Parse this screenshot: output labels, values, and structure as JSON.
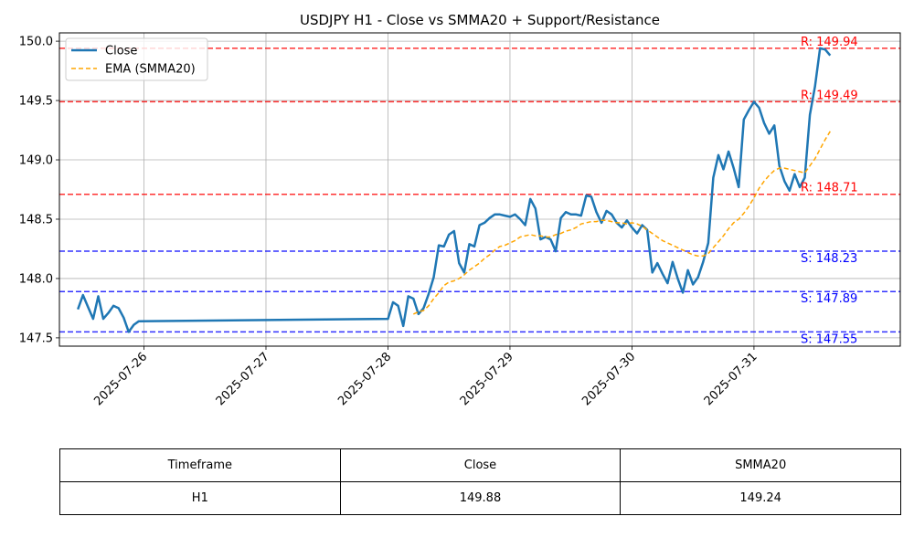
{
  "chart_data": {
    "type": "line",
    "title": "USDJPY H1 - Close vs SMMA20 + Support/Resistance",
    "xlabel": "",
    "ylabel": "",
    "x_tick_labels": [
      "2025-07-26",
      "2025-07-27",
      "2025-07-28",
      "2025-07-29",
      "2025-07-30",
      "2025-07-31"
    ],
    "y_tick_labels": [
      "147.5",
      "148.0",
      "148.5",
      "149.0",
      "149.5",
      "150.0"
    ],
    "ylim": [
      147.43,
      150.07
    ],
    "grid": true,
    "legend_position": "top-left",
    "series": [
      {
        "name": "Close",
        "color": "#1f77b4",
        "style": "solid",
        "points": [
          [
            "2025-07-25 11:00",
            147.74
          ],
          [
            "2025-07-25 12:00",
            147.86
          ],
          [
            "2025-07-25 13:00",
            147.76
          ],
          [
            "2025-07-25 14:00",
            147.66
          ],
          [
            "2025-07-25 15:00",
            147.85
          ],
          [
            "2025-07-25 16:00",
            147.66
          ],
          [
            "2025-07-25 17:00",
            147.71
          ],
          [
            "2025-07-25 18:00",
            147.77
          ],
          [
            "2025-07-25 19:00",
            147.75
          ],
          [
            "2025-07-25 20:00",
            147.67
          ],
          [
            "2025-07-25 21:00",
            147.55
          ],
          [
            "2025-07-25 22:00",
            147.61
          ],
          [
            "2025-07-25 23:00",
            147.64
          ],
          [
            "2025-07-28 00:00",
            147.66
          ],
          [
            "2025-07-28 01:00",
            147.8
          ],
          [
            "2025-07-28 02:00",
            147.77
          ],
          [
            "2025-07-28 03:00",
            147.6
          ],
          [
            "2025-07-28 04:00",
            147.85
          ],
          [
            "2025-07-28 05:00",
            147.83
          ],
          [
            "2025-07-28 06:00",
            147.7
          ],
          [
            "2025-07-28 07:00",
            147.75
          ],
          [
            "2025-07-28 08:00",
            147.87
          ],
          [
            "2025-07-28 09:00",
            148.01
          ],
          [
            "2025-07-28 10:00",
            148.28
          ],
          [
            "2025-07-28 11:00",
            148.27
          ],
          [
            "2025-07-28 12:00",
            148.37
          ],
          [
            "2025-07-28 13:00",
            148.4
          ],
          [
            "2025-07-28 14:00",
            148.13
          ],
          [
            "2025-07-28 15:00",
            148.05
          ],
          [
            "2025-07-28 16:00",
            148.29
          ],
          [
            "2025-07-28 17:00",
            148.27
          ],
          [
            "2025-07-28 18:00",
            148.45
          ],
          [
            "2025-07-28 19:00",
            148.47
          ],
          [
            "2025-07-28 20:00",
            148.51
          ],
          [
            "2025-07-28 21:00",
            148.54
          ],
          [
            "2025-07-28 22:00",
            148.54
          ],
          [
            "2025-07-28 23:00",
            148.53
          ],
          [
            "2025-07-29 00:00",
            148.52
          ],
          [
            "2025-07-29 01:00",
            148.54
          ],
          [
            "2025-07-29 02:00",
            148.5
          ],
          [
            "2025-07-29 03:00",
            148.45
          ],
          [
            "2025-07-29 04:00",
            148.67
          ],
          [
            "2025-07-29 05:00",
            148.59
          ],
          [
            "2025-07-29 06:00",
            148.33
          ],
          [
            "2025-07-29 07:00",
            148.35
          ],
          [
            "2025-07-29 08:00",
            148.33
          ],
          [
            "2025-07-29 09:00",
            148.23
          ],
          [
            "2025-07-29 10:00",
            148.51
          ],
          [
            "2025-07-29 11:00",
            148.56
          ],
          [
            "2025-07-29 12:00",
            148.54
          ],
          [
            "2025-07-29 13:00",
            148.54
          ],
          [
            "2025-07-29 14:00",
            148.53
          ],
          [
            "2025-07-29 15:00",
            148.7
          ],
          [
            "2025-07-29 16:00",
            148.69
          ],
          [
            "2025-07-29 17:00",
            148.56
          ],
          [
            "2025-07-29 18:00",
            148.47
          ],
          [
            "2025-07-29 19:00",
            148.57
          ],
          [
            "2025-07-29 20:00",
            148.54
          ],
          [
            "2025-07-29 21:00",
            148.47
          ],
          [
            "2025-07-29 22:00",
            148.43
          ],
          [
            "2025-07-29 23:00",
            148.49
          ],
          [
            "2025-07-30 00:00",
            148.43
          ],
          [
            "2025-07-30 01:00",
            148.38
          ],
          [
            "2025-07-30 02:00",
            148.45
          ],
          [
            "2025-07-30 03:00",
            148.41
          ],
          [
            "2025-07-30 04:00",
            148.05
          ],
          [
            "2025-07-30 05:00",
            148.13
          ],
          [
            "2025-07-30 06:00",
            148.04
          ],
          [
            "2025-07-30 07:00",
            147.96
          ],
          [
            "2025-07-30 08:00",
            148.14
          ],
          [
            "2025-07-30 09:00",
            148.0
          ],
          [
            "2025-07-30 10:00",
            147.88
          ],
          [
            "2025-07-30 11:00",
            148.07
          ],
          [
            "2025-07-30 12:00",
            147.95
          ],
          [
            "2025-07-30 13:00",
            148.01
          ],
          [
            "2025-07-30 14:00",
            148.14
          ],
          [
            "2025-07-30 15:00",
            148.3
          ],
          [
            "2025-07-30 16:00",
            148.85
          ],
          [
            "2025-07-30 17:00",
            149.04
          ],
          [
            "2025-07-30 18:00",
            148.92
          ],
          [
            "2025-07-30 19:00",
            149.07
          ],
          [
            "2025-07-30 20:00",
            148.93
          ],
          [
            "2025-07-30 21:00",
            148.77
          ],
          [
            "2025-07-30 22:00",
            149.34
          ],
          [
            "2025-07-30 23:00",
            149.42
          ],
          [
            "2025-07-31 00:00",
            149.49
          ],
          [
            "2025-07-31 01:00",
            149.44
          ],
          [
            "2025-07-31 02:00",
            149.31
          ],
          [
            "2025-07-31 03:00",
            149.22
          ],
          [
            "2025-07-31 04:00",
            149.29
          ],
          [
            "2025-07-31 05:00",
            148.95
          ],
          [
            "2025-07-31 06:00",
            148.82
          ],
          [
            "2025-07-31 07:00",
            148.74
          ],
          [
            "2025-07-31 08:00",
            148.88
          ],
          [
            "2025-07-31 09:00",
            148.77
          ],
          [
            "2025-07-31 10:00",
            148.85
          ],
          [
            "2025-07-31 11:00",
            149.38
          ],
          [
            "2025-07-31 12:00",
            149.62
          ],
          [
            "2025-07-31 13:00",
            149.94
          ],
          [
            "2025-07-31 14:00",
            149.93
          ],
          [
            "2025-07-31 15:00",
            149.88
          ]
        ]
      },
      {
        "name": "EMA (SMMA20)",
        "color": "#ffa500",
        "style": "dashed",
        "points": [
          [
            "2025-07-28 05:00",
            147.7
          ],
          [
            "2025-07-28 06:00",
            147.72
          ],
          [
            "2025-07-28 07:00",
            147.73
          ],
          [
            "2025-07-28 08:00",
            147.77
          ],
          [
            "2025-07-28 09:00",
            147.83
          ],
          [
            "2025-07-28 10:00",
            147.88
          ],
          [
            "2025-07-28 11:00",
            147.94
          ],
          [
            "2025-07-28 12:00",
            147.97
          ],
          [
            "2025-07-28 13:00",
            147.98
          ],
          [
            "2025-07-28 14:00",
            148.0
          ],
          [
            "2025-07-28 15:00",
            148.03
          ],
          [
            "2025-07-28 16:00",
            148.07
          ],
          [
            "2025-07-28 17:00",
            148.1
          ],
          [
            "2025-07-28 18:00",
            148.13
          ],
          [
            "2025-07-28 19:00",
            148.17
          ],
          [
            "2025-07-28 20:00",
            148.2
          ],
          [
            "2025-07-28 21:00",
            148.24
          ],
          [
            "2025-07-28 22:00",
            148.27
          ],
          [
            "2025-07-28 23:00",
            148.28
          ],
          [
            "2025-07-29 00:00",
            148.3
          ],
          [
            "2025-07-29 01:00",
            148.32
          ],
          [
            "2025-07-29 02:00",
            148.35
          ],
          [
            "2025-07-29 03:00",
            148.36
          ],
          [
            "2025-07-29 04:00",
            148.37
          ],
          [
            "2025-07-29 05:00",
            148.36
          ],
          [
            "2025-07-29 06:00",
            148.36
          ],
          [
            "2025-07-29 07:00",
            148.35
          ],
          [
            "2025-07-29 08:00",
            148.35
          ],
          [
            "2025-07-29 09:00",
            148.37
          ],
          [
            "2025-07-29 10:00",
            148.38
          ],
          [
            "2025-07-29 11:00",
            148.4
          ],
          [
            "2025-07-29 12:00",
            148.41
          ],
          [
            "2025-07-29 13:00",
            148.43
          ],
          [
            "2025-07-29 14:00",
            148.46
          ],
          [
            "2025-07-29 15:00",
            148.47
          ],
          [
            "2025-07-29 16:00",
            148.48
          ],
          [
            "2025-07-29 17:00",
            148.48
          ],
          [
            "2025-07-29 18:00",
            148.49
          ],
          [
            "2025-07-29 19:00",
            148.49
          ],
          [
            "2025-07-29 20:00",
            148.48
          ],
          [
            "2025-07-29 21:00",
            148.47
          ],
          [
            "2025-07-29 22:00",
            148.47
          ],
          [
            "2025-07-29 23:00",
            148.46
          ],
          [
            "2025-07-30 00:00",
            148.47
          ],
          [
            "2025-07-30 01:00",
            148.46
          ],
          [
            "2025-07-30 02:00",
            148.44
          ],
          [
            "2025-07-30 03:00",
            148.41
          ],
          [
            "2025-07-30 04:00",
            148.38
          ],
          [
            "2025-07-30 05:00",
            148.35
          ],
          [
            "2025-07-30 06:00",
            148.32
          ],
          [
            "2025-07-30 07:00",
            148.3
          ],
          [
            "2025-07-30 08:00",
            148.28
          ],
          [
            "2025-07-30 09:00",
            148.26
          ],
          [
            "2025-07-30 10:00",
            148.24
          ],
          [
            "2025-07-30 11:00",
            148.22
          ],
          [
            "2025-07-30 12:00",
            148.2
          ],
          [
            "2025-07-30 13:00",
            148.19
          ],
          [
            "2025-07-30 14:00",
            148.19
          ],
          [
            "2025-07-30 15:00",
            148.21
          ],
          [
            "2025-07-30 16:00",
            148.26
          ],
          [
            "2025-07-30 17:00",
            148.31
          ],
          [
            "2025-07-30 18:00",
            148.36
          ],
          [
            "2025-07-30 19:00",
            148.42
          ],
          [
            "2025-07-30 20:00",
            148.47
          ],
          [
            "2025-07-30 21:00",
            148.5
          ],
          [
            "2025-07-30 22:00",
            148.55
          ],
          [
            "2025-07-30 23:00",
            148.61
          ],
          [
            "2025-07-31 00:00",
            148.68
          ],
          [
            "2025-07-31 01:00",
            148.76
          ],
          [
            "2025-07-31 02:00",
            148.82
          ],
          [
            "2025-07-31 03:00",
            148.87
          ],
          [
            "2025-07-31 04:00",
            148.91
          ],
          [
            "2025-07-31 05:00",
            148.93
          ],
          [
            "2025-07-31 06:00",
            148.93
          ],
          [
            "2025-07-31 07:00",
            148.92
          ],
          [
            "2025-07-31 08:00",
            148.91
          ],
          [
            "2025-07-31 09:00",
            148.9
          ],
          [
            "2025-07-31 10:00",
            148.89
          ],
          [
            "2025-07-31 11:00",
            148.95
          ],
          [
            "2025-07-31 12:00",
            149.01
          ],
          [
            "2025-07-31 13:00",
            149.09
          ],
          [
            "2025-07-31 14:00",
            149.17
          ],
          [
            "2025-07-31 15:00",
            149.24
          ]
        ]
      }
    ],
    "levels": [
      {
        "kind": "resistance",
        "value": 149.94,
        "label": "R: 149.94",
        "color": "#ff0000"
      },
      {
        "kind": "resistance",
        "value": 149.49,
        "label": "R: 149.49",
        "color": "#ff0000"
      },
      {
        "kind": "resistance",
        "value": 148.71,
        "label": "R: 148.71",
        "color": "#ff0000"
      },
      {
        "kind": "support",
        "value": 148.23,
        "label": "S: 148.23",
        "color": "#0000ff"
      },
      {
        "kind": "support",
        "value": 147.89,
        "label": "S: 147.89",
        "color": "#0000ff"
      },
      {
        "kind": "support",
        "value": 147.55,
        "label": "S: 147.55",
        "color": "#0000ff"
      }
    ]
  },
  "table": {
    "headers": [
      "Timeframe",
      "Close",
      "SMMA20"
    ],
    "rows": [
      [
        "H1",
        "149.88",
        "149.24"
      ]
    ]
  }
}
